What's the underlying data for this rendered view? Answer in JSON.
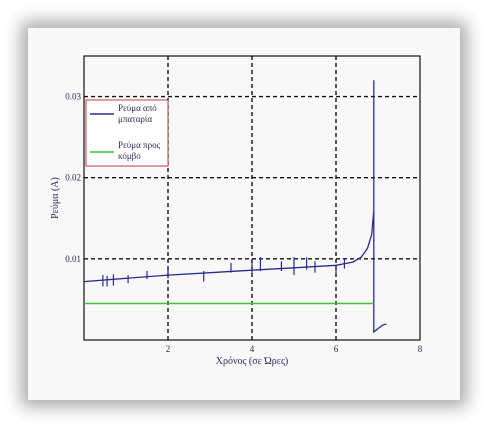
{
  "chart_data": {
    "type": "line",
    "title": "",
    "xlabel": "Χρόνος (σε Ώρες)",
    "ylabel": "Ρεύμα (A)",
    "xlim": [
      0,
      8
    ],
    "ylim": [
      0,
      0.035
    ],
    "x_ticks": [
      {
        "value": 2,
        "label": "2"
      },
      {
        "value": 4,
        "label": "4"
      },
      {
        "value": 6,
        "label": "6"
      },
      {
        "value": 8,
        "label": "8"
      }
    ],
    "y_ticks": [
      {
        "value": 0.01,
        "label": "0.01"
      },
      {
        "value": 0.02,
        "label": "0.02"
      },
      {
        "value": 0.03,
        "label": "0.03"
      }
    ],
    "grid": true,
    "legend_position": "top-left",
    "series": [
      {
        "name": "Ρεύμα από μπαταρία",
        "color": "#2b2b8f",
        "points": [
          [
            0,
            0.0072
          ],
          [
            1,
            0.0076
          ],
          [
            2,
            0.008
          ],
          [
            3,
            0.0083
          ],
          [
            4,
            0.0086
          ],
          [
            5,
            0.0089
          ],
          [
            6,
            0.0092
          ],
          [
            6.4,
            0.0096
          ],
          [
            6.6,
            0.0102
          ],
          [
            6.75,
            0.0113
          ],
          [
            6.85,
            0.013
          ],
          [
            6.9,
            0.016
          ],
          [
            6.9,
            0.032
          ],
          [
            6.9,
            0.001
          ],
          [
            7.1,
            0.0018
          ],
          [
            7.2,
            0.002
          ]
        ],
        "spikes": [
          [
            0.45,
            0.0066,
            0.008
          ],
          [
            0.55,
            0.0066,
            0.0079
          ],
          [
            0.7,
            0.0067,
            0.0081
          ],
          [
            1.05,
            0.007,
            0.008
          ],
          [
            1.5,
            0.0075,
            0.0085
          ],
          [
            2.0,
            0.0076,
            0.009
          ],
          [
            2.85,
            0.0072,
            0.0085
          ],
          [
            3.5,
            0.0083,
            0.0095
          ],
          [
            4.0,
            0.008,
            0.0095
          ],
          [
            4.2,
            0.0085,
            0.0102
          ],
          [
            4.7,
            0.0085,
            0.0097
          ],
          [
            5.0,
            0.008,
            0.0102
          ],
          [
            5.3,
            0.0087,
            0.0102
          ],
          [
            5.5,
            0.0083,
            0.0097
          ],
          [
            6.0,
            0.008,
            0.0092
          ],
          [
            6.2,
            0.0088,
            0.01
          ]
        ]
      },
      {
        "name": "Ρεύμα προς κόμβο",
        "color": "#3cc43c",
        "points": [
          [
            0,
            0.0045
          ],
          [
            6.9,
            0.0045
          ]
        ]
      }
    ]
  }
}
